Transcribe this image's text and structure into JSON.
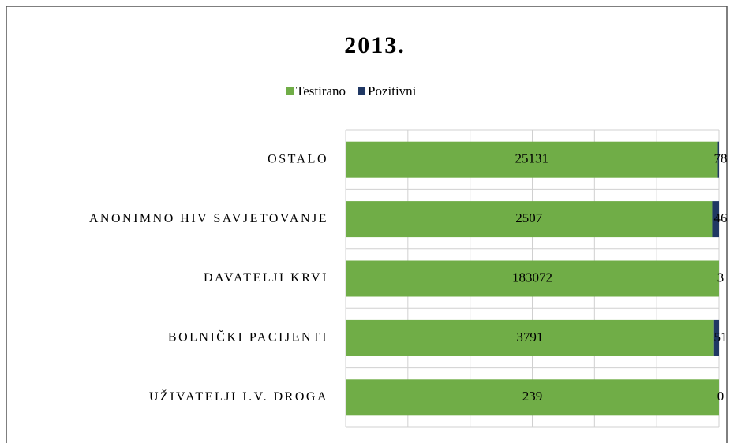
{
  "chart_data": {
    "type": "stacked_bar_100",
    "orientation": "horizontal",
    "title": "2013.",
    "categories": [
      "OSTALO",
      "ANONIMNO HIV SAVJETOVANJE",
      "DAVATELJI KRVI",
      "BOLNIČKI PACIJENTI",
      "UŽIVATELJI I.V. DROGA"
    ],
    "series": [
      {
        "name": "Testirano",
        "color": "#70ad47",
        "values": [
          25131,
          2507,
          183072,
          3791,
          239
        ]
      },
      {
        "name": "Pozitivni",
        "color": "#203864",
        "values": [
          78,
          46,
          3,
          51,
          0
        ]
      }
    ],
    "legend": "top",
    "grid": true
  }
}
